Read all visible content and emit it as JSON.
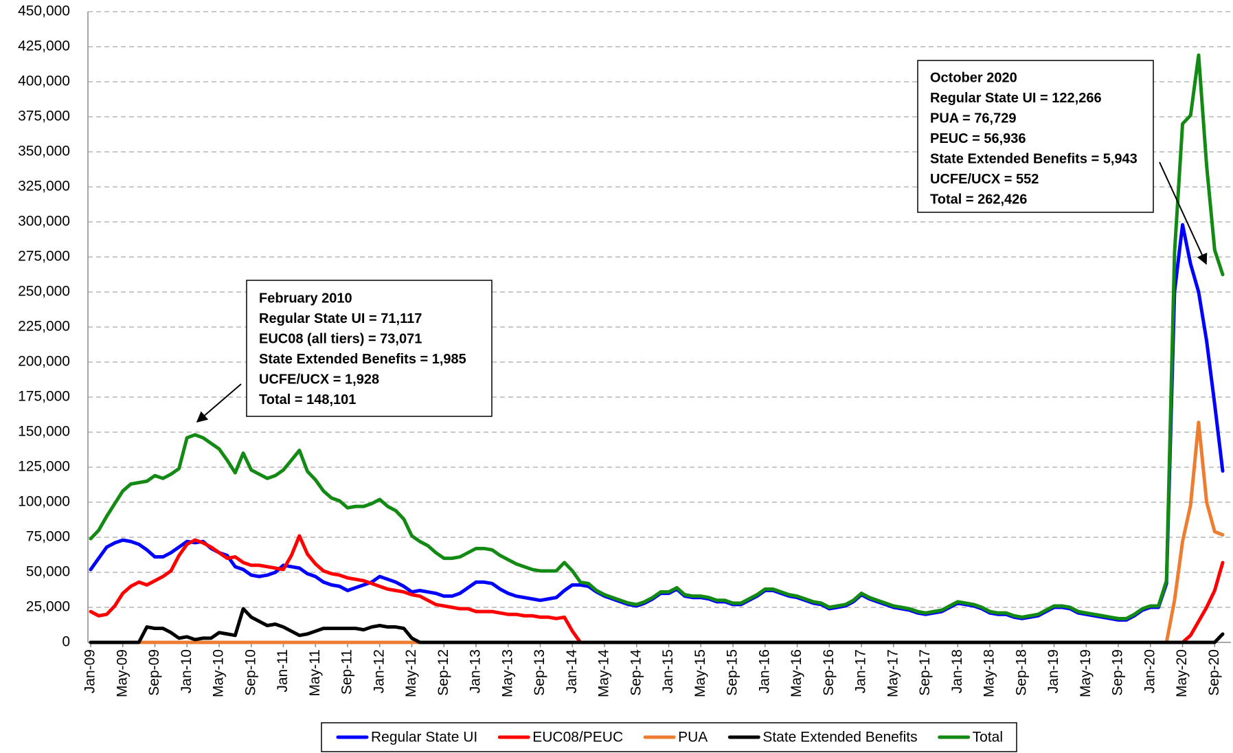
{
  "chart_data": {
    "type": "line",
    "categories": [
      "Jan-09",
      null,
      null,
      null,
      "May-09",
      null,
      null,
      null,
      "Sep-09",
      null,
      null,
      null,
      "Jan-10",
      null,
      null,
      null,
      "May-10",
      null,
      null,
      null,
      "Sep-10",
      null,
      null,
      null,
      "Jan-11",
      null,
      null,
      null,
      "May-11",
      null,
      null,
      null,
      "Sep-11",
      null,
      null,
      null,
      "Jan-12",
      null,
      null,
      null,
      "May-12",
      null,
      null,
      null,
      "Sep-12",
      null,
      null,
      null,
      "Jan-13",
      null,
      null,
      null,
      "May-13",
      null,
      null,
      null,
      "Sep-13",
      null,
      null,
      null,
      "Jan-14",
      null,
      null,
      null,
      "May-14",
      null,
      null,
      null,
      "Sep-14",
      null,
      null,
      null,
      "Jan-15",
      null,
      null,
      null,
      "May-15",
      null,
      null,
      null,
      "Sep-15",
      null,
      null,
      null,
      "Jan-16",
      null,
      null,
      null,
      "May-16",
      null,
      null,
      null,
      "Sep-16",
      null,
      null,
      null,
      "Jan-17",
      null,
      null,
      null,
      "May-17",
      null,
      null,
      null,
      "Sep-17",
      null,
      null,
      null,
      "Jan-18",
      null,
      null,
      null,
      "May-18",
      null,
      null,
      null,
      "Sep-18",
      null,
      null,
      null,
      "Jan-19",
      null,
      null,
      null,
      "May-19",
      null,
      null,
      null,
      "Sep-19",
      null,
      null,
      null,
      "Jan-20",
      null,
      null,
      null,
      "May-20",
      null,
      null,
      null,
      "Sep-20",
      null
    ],
    "series": [
      {
        "name": "Regular State UI",
        "color": "#0000ff",
        "values": [
          52000,
          60000,
          68000,
          71000,
          73000,
          72000,
          70000,
          66000,
          61000,
          61000,
          64000,
          68000,
          72000,
          71117,
          72000,
          67000,
          64000,
          62000,
          54000,
          52000,
          48000,
          47000,
          48000,
          50000,
          55000,
          54000,
          53000,
          49000,
          47000,
          43000,
          41000,
          40000,
          37000,
          39000,
          41000,
          43000,
          47000,
          45000,
          43000,
          40000,
          36000,
          37000,
          36000,
          35000,
          33000,
          33000,
          35000,
          39000,
          43000,
          43000,
          42000,
          38000,
          35000,
          33000,
          32000,
          31000,
          30000,
          31000,
          32000,
          37000,
          41000,
          41000,
          40000,
          36000,
          33000,
          31000,
          29000,
          27000,
          26000,
          28000,
          31000,
          35000,
          35000,
          38000,
          33000,
          32000,
          32000,
          31000,
          29000,
          29000,
          27000,
          27000,
          30000,
          33000,
          37000,
          37000,
          35000,
          33000,
          32000,
          30000,
          28000,
          27000,
          24000,
          25000,
          26000,
          29000,
          34000,
          31000,
          29000,
          27000,
          25000,
          24000,
          23000,
          21000,
          20000,
          21000,
          22000,
          25000,
          28000,
          27000,
          26000,
          24000,
          21000,
          20000,
          20000,
          18000,
          17000,
          18000,
          19000,
          22000,
          25000,
          25000,
          24000,
          21000,
          20000,
          19000,
          18000,
          17000,
          16000,
          16000,
          19000,
          23000,
          25000,
          25000,
          42000,
          250000,
          298000,
          270000,
          250000,
          215000,
          170000,
          122266
        ]
      },
      {
        "name": "EUC08/PEUC",
        "color": "#ff0000",
        "values": [
          22000,
          19000,
          20000,
          26000,
          35000,
          40000,
          43000,
          41000,
          44000,
          47000,
          51000,
          62000,
          70000,
          73071,
          71000,
          68000,
          64000,
          60000,
          61000,
          57000,
          55000,
          55000,
          54000,
          53000,
          52000,
          62000,
          76000,
          63000,
          56000,
          51000,
          49000,
          48000,
          46000,
          45000,
          44000,
          42000,
          40000,
          38000,
          37000,
          36000,
          34000,
          33000,
          30000,
          27000,
          26000,
          25000,
          24000,
          24000,
          22000,
          22000,
          22000,
          21000,
          20000,
          20000,
          19000,
          19000,
          18000,
          18000,
          17000,
          18000,
          8000,
          0,
          0,
          0,
          0,
          0,
          0,
          0,
          0,
          0,
          0,
          0,
          0,
          0,
          0,
          0,
          0,
          0,
          0,
          0,
          0,
          0,
          0,
          0,
          0,
          0,
          0,
          0,
          0,
          0,
          0,
          0,
          0,
          0,
          0,
          0,
          0,
          0,
          0,
          0,
          0,
          0,
          0,
          0,
          0,
          0,
          0,
          0,
          0,
          0,
          0,
          0,
          0,
          0,
          0,
          0,
          0,
          0,
          0,
          0,
          0,
          0,
          0,
          0,
          0,
          0,
          0,
          0,
          0,
          0,
          0,
          0,
          0,
          0,
          0,
          0,
          0,
          5000,
          15000,
          25000,
          37000,
          56936
        ]
      },
      {
        "name": "PUA",
        "color": "#ed7d31",
        "values": [
          0,
          0,
          0,
          0,
          0,
          0,
          0,
          0,
          0,
          0,
          0,
          0,
          0,
          0,
          0,
          0,
          0,
          0,
          0,
          0,
          0,
          0,
          0,
          0,
          0,
          0,
          0,
          0,
          0,
          0,
          0,
          0,
          0,
          0,
          0,
          0,
          0,
          0,
          0,
          0,
          0,
          0,
          0,
          0,
          0,
          0,
          0,
          0,
          0,
          0,
          0,
          0,
          0,
          0,
          0,
          0,
          0,
          0,
          0,
          0,
          0,
          0,
          0,
          0,
          0,
          0,
          0,
          0,
          0,
          0,
          0,
          0,
          0,
          0,
          0,
          0,
          0,
          0,
          0,
          0,
          0,
          0,
          0,
          0,
          0,
          0,
          0,
          0,
          0,
          0,
          0,
          0,
          0,
          0,
          0,
          0,
          0,
          0,
          0,
          0,
          0,
          0,
          0,
          0,
          0,
          0,
          0,
          0,
          0,
          0,
          0,
          0,
          0,
          0,
          0,
          0,
          0,
          0,
          0,
          0,
          0,
          0,
          0,
          0,
          0,
          0,
          0,
          0,
          0,
          0,
          0,
          0,
          0,
          0,
          0,
          30000,
          72000,
          98000,
          157000,
          100000,
          79000,
          76729
        ]
      },
      {
        "name": "State Extended Benefits",
        "color": "#000000",
        "values": [
          0,
          0,
          0,
          0,
          0,
          0,
          0,
          11000,
          10000,
          10000,
          7000,
          3000,
          4000,
          1985,
          3000,
          3000,
          7000,
          6000,
          5000,
          24000,
          18000,
          15000,
          12000,
          13000,
          11000,
          8000,
          5000,
          6000,
          8000,
          10000,
          10000,
          10000,
          10000,
          10000,
          9000,
          11000,
          12000,
          11000,
          11000,
          10000,
          3000,
          0,
          0,
          0,
          0,
          0,
          0,
          0,
          0,
          0,
          0,
          0,
          0,
          0,
          0,
          0,
          0,
          0,
          0,
          0,
          0,
          0,
          0,
          0,
          0,
          0,
          0,
          0,
          0,
          0,
          0,
          0,
          0,
          0,
          0,
          0,
          0,
          0,
          0,
          0,
          0,
          0,
          0,
          0,
          0,
          0,
          0,
          0,
          0,
          0,
          0,
          0,
          0,
          0,
          0,
          0,
          0,
          0,
          0,
          0,
          0,
          0,
          0,
          0,
          0,
          0,
          0,
          0,
          0,
          0,
          0,
          0,
          0,
          0,
          0,
          0,
          0,
          0,
          0,
          0,
          0,
          0,
          0,
          0,
          0,
          0,
          0,
          0,
          0,
          0,
          0,
          0,
          0,
          0,
          0,
          0,
          0,
          0,
          0,
          0,
          0,
          5943
        ]
      },
      {
        "name": "Total",
        "color": "#138a13",
        "values": [
          74000,
          80000,
          90000,
          99000,
          108000,
          113000,
          114000,
          115000,
          119000,
          117000,
          120000,
          124000,
          146000,
          148101,
          146000,
          142000,
          138000,
          130000,
          121000,
          135000,
          123000,
          120000,
          117000,
          119000,
          123000,
          130000,
          137000,
          122000,
          116000,
          108000,
          103000,
          101000,
          96000,
          97000,
          97000,
          99000,
          102000,
          97000,
          94000,
          88000,
          76000,
          72000,
          69000,
          64000,
          60000,
          60000,
          61000,
          64000,
          67000,
          67000,
          66000,
          62000,
          59000,
          56000,
          54000,
          52000,
          51000,
          51000,
          51000,
          57000,
          51000,
          43000,
          42000,
          37000,
          34000,
          32000,
          30000,
          28000,
          27000,
          29000,
          32000,
          36000,
          36000,
          39000,
          34000,
          33000,
          33000,
          32000,
          30000,
          30000,
          28000,
          28000,
          31000,
          34000,
          38000,
          38000,
          36000,
          34000,
          33000,
          31000,
          29000,
          28000,
          25000,
          26000,
          27000,
          30000,
          35000,
          32000,
          30000,
          28000,
          26000,
          25000,
          24000,
          22000,
          21000,
          22000,
          23000,
          26000,
          29000,
          28000,
          27000,
          25000,
          22000,
          21000,
          21000,
          19000,
          18000,
          19000,
          20000,
          23000,
          26000,
          26000,
          25000,
          22000,
          21000,
          20000,
          19000,
          18000,
          17000,
          17000,
          20000,
          24000,
          26000,
          26000,
          44000,
          278000,
          370000,
          376000,
          419000,
          340000,
          280000,
          262426
        ]
      }
    ],
    "ylim": [
      0,
      450000
    ],
    "yticks": [
      0,
      {
        "value": 25000,
        "label": "25,000"
      },
      {
        "value": 50000,
        "label": "50,000"
      },
      {
        "value": 75000,
        "label": "75,000"
      },
      {
        "value": 100000,
        "label": "100,000"
      },
      {
        "value": 125000,
        "label": "125,000"
      },
      {
        "value": 150000,
        "label": "150,000"
      },
      {
        "value": 175000,
        "label": "175,000"
      },
      {
        "value": 200000,
        "label": "200,000"
      },
      {
        "value": 225000,
        "label": "225,000"
      },
      {
        "value": 250000,
        "label": "250,000"
      },
      {
        "value": 275000,
        "label": "275,000"
      },
      {
        "value": 300000,
        "label": "300,000"
      },
      {
        "value": 325000,
        "label": "325,000"
      },
      {
        "value": 350000,
        "label": "350,000"
      },
      {
        "value": 375000,
        "label": "375,000"
      },
      {
        "value": 400000,
        "label": "400,000"
      },
      {
        "value": 425000,
        "label": "425,000"
      },
      {
        "value": 450000,
        "label": "450,000"
      }
    ],
    "grid": true,
    "legend": "bottom",
    "annotations": [
      {
        "lines": [
          "February 2010",
          "Regular State UI = 71,117",
          "EUC08 (all tiers) = 73,071",
          "State Extended Benefits = 1,985",
          "UCFE/UCX = 1,928",
          "Total = 148,101"
        ]
      },
      {
        "lines": [
          "October 2020",
          "Regular State UI = 122,266",
          "PUA = 76,729",
          "PEUC = 56,936",
          "State Extended Benefits = 5,943",
          "UCFE/UCX = 552",
          "Total = 262,426"
        ]
      }
    ]
  }
}
